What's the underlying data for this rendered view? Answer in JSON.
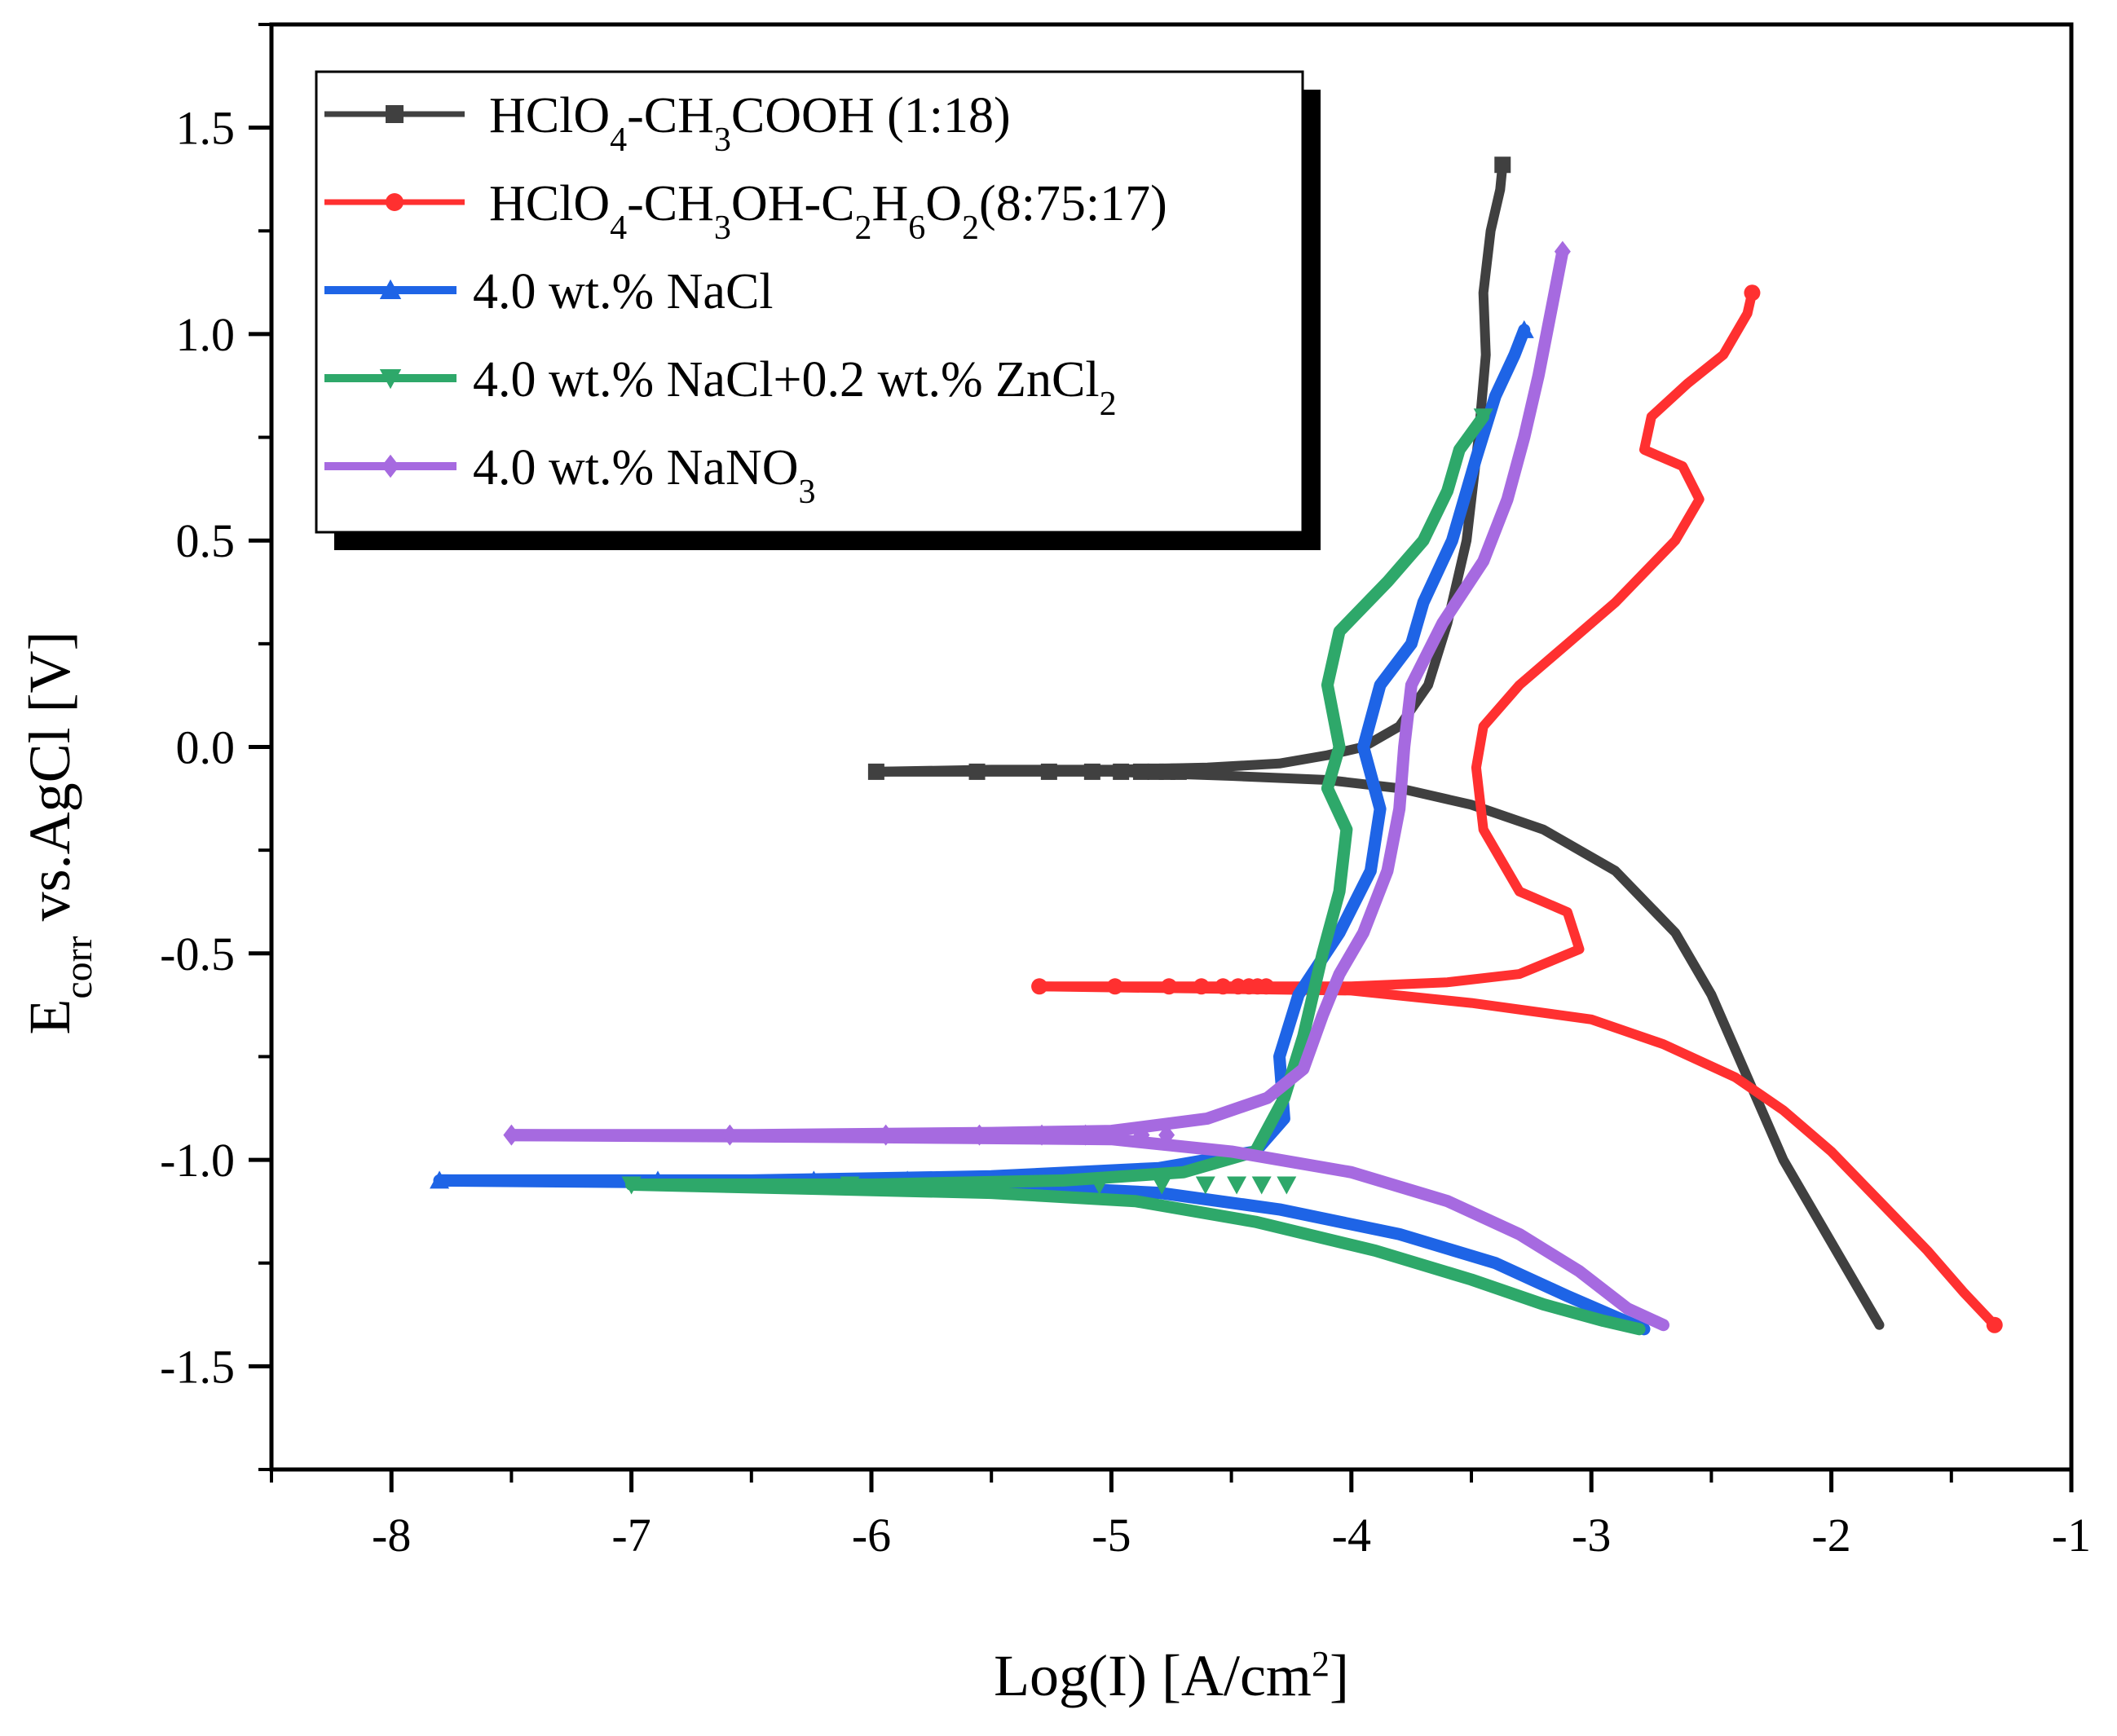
{
  "chart_data": {
    "type": "line",
    "title": "",
    "xlabel": {
      "prefix": "Log(I) [A/cm",
      "sup": "2",
      "suffix": "]"
    },
    "ylabel": {
      "prefix": "E",
      "sub": "corr",
      "suffix": " vs.AgCl [V]"
    },
    "xlim": [
      -8.5,
      -1
    ],
    "ylim": [
      -1.75,
      1.75
    ],
    "x_ticks": [
      -8,
      -7,
      -6,
      -5,
      -4,
      -3,
      -2,
      -1
    ],
    "x_tick_labels": [
      "-8",
      "-7",
      "-6",
      "-5",
      "-4",
      "-3",
      "-2",
      "-1"
    ],
    "y_ticks": [
      -1.5,
      -1.0,
      -0.5,
      0.0,
      0.5,
      1.0,
      1.5
    ],
    "y_tick_labels": [
      "-1.5",
      "-1.0",
      "-0.5",
      "0.0",
      "0.5",
      "1.0",
      "1.5"
    ],
    "legend_position": "top-left",
    "series": [
      {
        "name": "HClO4-CH3COOH (1:18)",
        "legend_parts": [
          [
            "HClO",
            ""
          ],
          [
            "4",
            "sub"
          ],
          [
            "-CH",
            ""
          ],
          [
            "3",
            "sub"
          ],
          [
            "COOH (1:18)",
            ""
          ]
        ],
        "color": "#404040",
        "marker": "square",
        "points": [
          [
            -5.98,
            -0.06
          ],
          [
            -5.5,
            -0.055
          ],
          [
            -5.0,
            -0.055
          ],
          [
            -4.6,
            -0.05
          ],
          [
            -4.3,
            -0.04
          ],
          [
            -4.1,
            -0.02
          ],
          [
            -3.95,
            0.0
          ],
          [
            -3.8,
            0.05
          ],
          [
            -3.68,
            0.15
          ],
          [
            -3.6,
            0.3
          ],
          [
            -3.52,
            0.5
          ],
          [
            -3.47,
            0.75
          ],
          [
            -3.44,
            0.95
          ],
          [
            -3.45,
            1.1
          ],
          [
            -3.42,
            1.25
          ],
          [
            -3.38,
            1.35
          ],
          [
            -3.37,
            1.41
          ]
        ],
        "branch": [
          [
            -5.98,
            -0.06
          ],
          [
            -5.0,
            -0.06
          ],
          [
            -4.5,
            -0.07
          ],
          [
            -4.1,
            -0.08
          ],
          [
            -3.8,
            -0.1
          ],
          [
            -3.5,
            -0.14
          ],
          [
            -3.2,
            -0.2
          ],
          [
            -2.9,
            -0.3
          ],
          [
            -2.65,
            -0.45
          ],
          [
            -2.5,
            -0.6
          ],
          [
            -2.35,
            -0.8
          ],
          [
            -2.2,
            -1.0
          ],
          [
            -2.05,
            -1.15
          ],
          [
            -1.9,
            -1.3
          ],
          [
            -1.8,
            -1.4
          ]
        ]
      },
      {
        "name": "HClO4-CH3OH-C2H6O2(8:75:17)",
        "legend_parts": [
          [
            "HClO",
            ""
          ],
          [
            "4",
            "sub"
          ],
          [
            "-CH",
            ""
          ],
          [
            "3",
            "sub"
          ],
          [
            "OH-C",
            ""
          ],
          [
            "2",
            "sub"
          ],
          [
            "H",
            ""
          ],
          [
            "6",
            "sub"
          ],
          [
            "O",
            ""
          ],
          [
            "2",
            "sub"
          ],
          [
            "(8:75:17)",
            ""
          ]
        ],
        "color": "#ff3030",
        "marker": "circle",
        "points": [
          [
            -5.3,
            -0.58
          ],
          [
            -4.5,
            -0.58
          ],
          [
            -4.0,
            -0.58
          ],
          [
            -3.6,
            -0.57
          ],
          [
            -3.3,
            -0.55
          ],
          [
            -3.05,
            -0.49
          ],
          [
            -3.1,
            -0.4
          ],
          [
            -3.3,
            -0.35
          ],
          [
            -3.45,
            -0.2
          ],
          [
            -3.48,
            -0.05
          ],
          [
            -3.45,
            0.05
          ],
          [
            -3.3,
            0.15
          ],
          [
            -3.1,
            0.25
          ],
          [
            -2.9,
            0.35
          ],
          [
            -2.65,
            0.5
          ],
          [
            -2.55,
            0.6
          ],
          [
            -2.62,
            0.68
          ],
          [
            -2.78,
            0.72
          ],
          [
            -2.75,
            0.8
          ],
          [
            -2.6,
            0.88
          ],
          [
            -2.45,
            0.95
          ],
          [
            -2.35,
            1.05
          ],
          [
            -2.33,
            1.1
          ]
        ],
        "branch": [
          [
            -5.3,
            -0.58
          ],
          [
            -4.0,
            -0.59
          ],
          [
            -3.5,
            -0.62
          ],
          [
            -3.0,
            -0.66
          ],
          [
            -2.7,
            -0.72
          ],
          [
            -2.4,
            -0.8
          ],
          [
            -2.2,
            -0.88
          ],
          [
            -2.0,
            -0.98
          ],
          [
            -1.8,
            -1.1
          ],
          [
            -1.6,
            -1.22
          ],
          [
            -1.45,
            -1.32
          ],
          [
            -1.32,
            -1.4
          ]
        ],
        "end_marker": [
          -1.32,
          -1.4
        ]
      },
      {
        "name": "4.0 wt.% NaCl",
        "legend_parts": [
          [
            "4.0 wt.%  NaCl",
            ""
          ]
        ],
        "color": "#1e64e6",
        "marker": "triangle",
        "points": [
          [
            -7.8,
            -1.05
          ],
          [
            -6.5,
            -1.05
          ],
          [
            -5.5,
            -1.04
          ],
          [
            -4.8,
            -1.02
          ],
          [
            -4.4,
            -0.98
          ],
          [
            -4.28,
            -0.9
          ],
          [
            -4.3,
            -0.75
          ],
          [
            -4.22,
            -0.6
          ],
          [
            -4.05,
            -0.45
          ],
          [
            -3.92,
            -0.3
          ],
          [
            -3.88,
            -0.15
          ],
          [
            -3.95,
            0.0
          ],
          [
            -3.88,
            0.15
          ],
          [
            -3.75,
            0.25
          ],
          [
            -3.7,
            0.35
          ],
          [
            -3.58,
            0.5
          ],
          [
            -3.48,
            0.7
          ],
          [
            -3.4,
            0.85
          ],
          [
            -3.32,
            0.95
          ],
          [
            -3.28,
            1.01
          ]
        ],
        "branch": [
          [
            -7.8,
            -1.05
          ],
          [
            -5.5,
            -1.06
          ],
          [
            -4.8,
            -1.08
          ],
          [
            -4.3,
            -1.12
          ],
          [
            -3.8,
            -1.18
          ],
          [
            -3.4,
            -1.25
          ],
          [
            -3.1,
            -1.33
          ],
          [
            -2.9,
            -1.38
          ],
          [
            -2.78,
            -1.41
          ]
        ]
      },
      {
        "name": "4.0 wt.% NaCl+0.2 wt.% ZnCl2",
        "legend_parts": [
          [
            "4.0 wt.%  NaCl+0.2 wt.%  ZnCl",
            ""
          ],
          [
            "2",
            "sub"
          ]
        ],
        "color": "#2ea86a",
        "marker": "triangle-down",
        "points": [
          [
            -7.0,
            -1.06
          ],
          [
            -6.0,
            -1.06
          ],
          [
            -5.2,
            -1.05
          ],
          [
            -4.7,
            -1.03
          ],
          [
            -4.4,
            -0.98
          ],
          [
            -4.28,
            -0.85
          ],
          [
            -4.2,
            -0.7
          ],
          [
            -4.12,
            -0.5
          ],
          [
            -4.05,
            -0.35
          ],
          [
            -4.02,
            -0.2
          ],
          [
            -4.1,
            -0.1
          ],
          [
            -4.05,
            0.0
          ],
          [
            -4.1,
            0.15
          ],
          [
            -4.05,
            0.28
          ],
          [
            -3.85,
            0.4
          ],
          [
            -3.7,
            0.5
          ],
          [
            -3.6,
            0.62
          ],
          [
            -3.55,
            0.72
          ],
          [
            -3.45,
            0.8
          ]
        ],
        "branch": [
          [
            -7.0,
            -1.06
          ],
          [
            -5.5,
            -1.08
          ],
          [
            -4.9,
            -1.1
          ],
          [
            -4.4,
            -1.15
          ],
          [
            -3.9,
            -1.22
          ],
          [
            -3.5,
            -1.29
          ],
          [
            -3.2,
            -1.35
          ],
          [
            -2.95,
            -1.39
          ],
          [
            -2.8,
            -1.41
          ]
        ]
      },
      {
        "name": "4.0 wt.% NaNO3",
        "legend_parts": [
          [
            "4.0 wt.%  NaNO",
            ""
          ],
          [
            "3",
            "sub"
          ]
        ],
        "color": "#a66ae0",
        "marker": "diamond",
        "points": [
          [
            -7.5,
            -0.94
          ],
          [
            -6.5,
            -0.94
          ],
          [
            -5.5,
            -0.935
          ],
          [
            -5.0,
            -0.93
          ],
          [
            -4.6,
            -0.9
          ],
          [
            -4.35,
            -0.85
          ],
          [
            -4.2,
            -0.78
          ],
          [
            -4.12,
            -0.65
          ],
          [
            -4.05,
            -0.55
          ],
          [
            -3.95,
            -0.45
          ],
          [
            -3.85,
            -0.3
          ],
          [
            -3.8,
            -0.15
          ],
          [
            -3.78,
            0.0
          ],
          [
            -3.75,
            0.15
          ],
          [
            -3.62,
            0.3
          ],
          [
            -3.45,
            0.45
          ],
          [
            -3.35,
            0.6
          ],
          [
            -3.28,
            0.75
          ],
          [
            -3.22,
            0.9
          ],
          [
            -3.17,
            1.05
          ],
          [
            -3.12,
            1.2
          ]
        ],
        "branch": [
          [
            -7.5,
            -0.94
          ],
          [
            -6.0,
            -0.945
          ],
          [
            -5.0,
            -0.95
          ],
          [
            -4.5,
            -0.98
          ],
          [
            -4.0,
            -1.03
          ],
          [
            -3.6,
            -1.1
          ],
          [
            -3.3,
            -1.18
          ],
          [
            -3.05,
            -1.27
          ],
          [
            -2.85,
            -1.36
          ],
          [
            -2.7,
            -1.4
          ]
        ]
      }
    ]
  }
}
